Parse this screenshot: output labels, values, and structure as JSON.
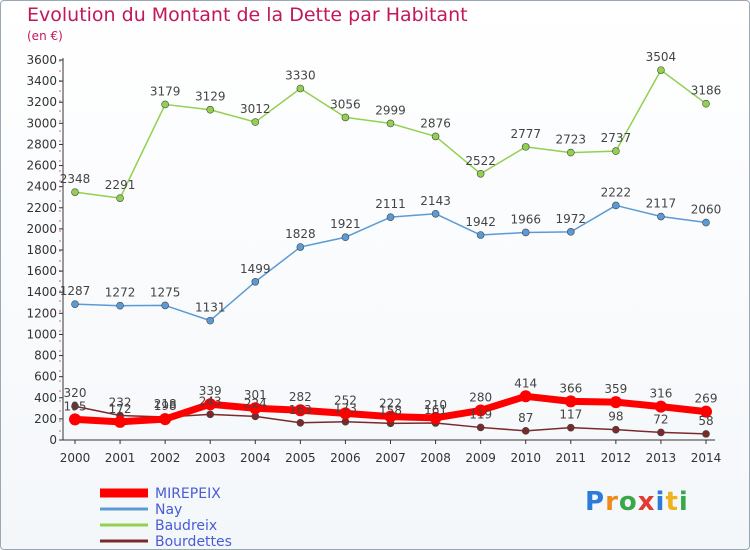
{
  "title": "Evolution du Montant de la Dette par Habitant",
  "subtitle": "(en €)",
  "logo_text": "Proxiti",
  "chart_data": {
    "type": "line",
    "x": [
      "2000",
      "2001",
      "2002",
      "2003",
      "2004",
      "2005",
      "2006",
      "2007",
      "2008",
      "2009",
      "2010",
      "2011",
      "2012",
      "2013",
      "2014"
    ],
    "ylim": [
      0,
      3600
    ],
    "yticks": [
      0,
      200,
      400,
      600,
      800,
      1000,
      1200,
      1400,
      1600,
      1800,
      2000,
      2200,
      2400,
      2600,
      2800,
      3000,
      3200,
      3400,
      3600
    ],
    "grid": false,
    "legend_position": "bottom-left",
    "series": [
      {
        "name": "MIREPEIX",
        "color": "#ff0000",
        "values": [
          195,
          172,
          198,
          339,
          301,
          282,
          252,
          222,
          210,
          280,
          414,
          366,
          359,
          316,
          269
        ],
        "value_labels": [
          "195",
          "172",
          "198",
          "339",
          "301",
          "282",
          "252",
          "222",
          "210",
          "280",
          "414",
          "366",
          "359",
          "316",
          "269"
        ]
      },
      {
        "name": "Nay",
        "color": "#5b9bd5",
        "values": [
          1287,
          1272,
          1275,
          1131,
          1499,
          1828,
          1921,
          2111,
          2143,
          1942,
          1966,
          1972,
          2222,
          2117,
          2060
        ],
        "value_labels": [
          "1287",
          "1272",
          "1275",
          "1131",
          "1499",
          "1828",
          "1921",
          "2111",
          "2143",
          "1942",
          "1966",
          "1972",
          "2222",
          "2117",
          "2060"
        ]
      },
      {
        "name": "Baudreix",
        "color": "#92d050",
        "values": [
          2348,
          2291,
          3179,
          3129,
          3012,
          3330,
          3056,
          2999,
          2876,
          2522,
          2777,
          2723,
          2737,
          3504,
          3186
        ],
        "value_labels": [
          "2348",
          "2291",
          "3179",
          "3129",
          "3012",
          "3330",
          "3056",
          "2999",
          "2876",
          "2522",
          "2777",
          "2723",
          "2737",
          "3504",
          "3186"
        ]
      },
      {
        "name": "Bourdettes",
        "color": "#7a2a2a",
        "values": [
          320,
          232,
          218,
          243,
          224,
          163,
          173,
          158,
          161,
          119,
          87,
          117,
          98,
          72,
          58
        ],
        "value_labels": [
          "320",
          "232",
          "218",
          "243",
          "224",
          "163",
          "173",
          "158",
          "161",
          "119",
          "87",
          "117",
          "98",
          "72",
          "58"
        ]
      }
    ]
  }
}
